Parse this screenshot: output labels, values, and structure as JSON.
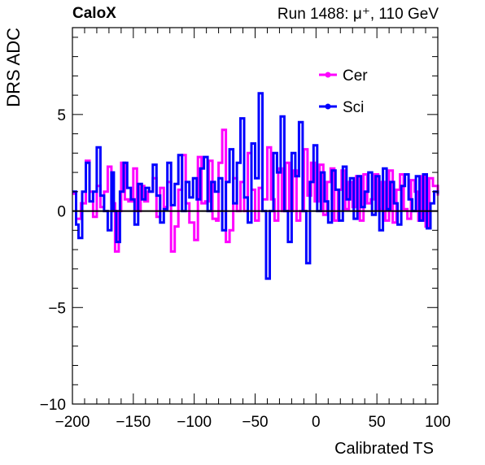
{
  "header": {
    "experiment": "CaloX",
    "run_label": "Run 1488:   μ⁺, 110 GeV"
  },
  "chart_data": {
    "type": "line",
    "title": "",
    "xlabel": "Calibrated TS",
    "ylabel": "DRS ADC",
    "xlim": [
      -200,
      100
    ],
    "ylim": [
      -10,
      9.5
    ],
    "xticks": [
      -200,
      -150,
      -100,
      -50,
      0,
      50,
      100
    ],
    "xtick_labels": [
      "−200",
      "−150",
      "−100",
      "−50",
      "0",
      "50",
      "100"
    ],
    "yticks": [
      -10,
      -5,
      0,
      5
    ],
    "ytick_labels": [
      "−10",
      "−5",
      "0",
      "5"
    ],
    "grid": false,
    "legend": "top-right",
    "baseline": 0,
    "series": [
      {
        "name": "Cer",
        "color": "#ff00ff",
        "points": [
          [
            -200,
            0.9
          ],
          [
            -197,
            -0.4
          ],
          [
            -193,
            0.4
          ],
          [
            -189,
            2.6
          ],
          [
            -186,
            1.0
          ],
          [
            -183,
            -0.3
          ],
          [
            -180,
            1.3
          ],
          [
            -177,
            0.2
          ],
          [
            -174,
            1.0
          ],
          [
            -171,
            2.3
          ],
          [
            -168,
            0.4
          ],
          [
            -165,
            -2.1
          ],
          [
            -162,
            0.0
          ],
          [
            -160,
            2.5
          ],
          [
            -157,
            0.6
          ],
          [
            -154,
            0.5
          ],
          [
            -150,
            2.2
          ],
          [
            -147,
            0.0
          ],
          [
            -144,
            1.3
          ],
          [
            -141,
            0.5
          ],
          [
            -138,
            1.0
          ],
          [
            -134,
            1.7
          ],
          [
            -131,
            -0.3
          ],
          [
            -128,
            1.2
          ],
          [
            -125,
            0.2
          ],
          [
            -122,
            1.5
          ],
          [
            -119,
            -2.1
          ],
          [
            -116,
            -0.8
          ],
          [
            -113,
            1.1
          ],
          [
            -110,
            2.9
          ],
          [
            -107,
            0.4
          ],
          [
            -104,
            -0.6
          ],
          [
            -100,
            -1.5
          ],
          [
            -97,
            2.8
          ],
          [
            -94,
            0.4
          ],
          [
            -91,
            0.5
          ],
          [
            -88,
            2.6
          ],
          [
            -85,
            -0.4
          ],
          [
            -82,
            -0.5
          ],
          [
            -80,
            2.5
          ],
          [
            -77,
            4.2
          ],
          [
            -74,
            -1.6
          ],
          [
            -71,
            -1.0
          ],
          [
            -68,
            1.7
          ],
          [
            -65,
            0.0
          ],
          [
            -62,
            1.5
          ],
          [
            -59,
            0.0
          ],
          [
            -56,
            3.0
          ],
          [
            -53,
            1.1
          ],
          [
            -50,
            -0.5
          ],
          [
            -47,
            1.2
          ],
          [
            -44,
            0.6
          ],
          [
            -40,
            3.3
          ],
          [
            -37,
            0.6
          ],
          [
            -34,
            -0.5
          ],
          [
            -31,
            2.2
          ],
          [
            -28,
            0.0
          ],
          [
            -25,
            2.5
          ],
          [
            -22,
            0.0
          ],
          [
            -19,
            2.1
          ],
          [
            -16,
            -0.5
          ],
          [
            -13,
            0.0
          ],
          [
            -10,
            3.2
          ],
          [
            -7,
            0.8
          ],
          [
            -4,
            2.5
          ],
          [
            -1,
            0.5
          ],
          [
            3,
            2.4
          ],
          [
            6,
            -0.2
          ],
          [
            9,
            1.5
          ],
          [
            12,
            2.2
          ],
          [
            15,
            -0.5
          ],
          [
            18,
            1.1
          ],
          [
            21,
            2.1
          ],
          [
            24,
            0.1
          ],
          [
            27,
            1.5
          ],
          [
            30,
            0.2
          ],
          [
            33,
            1.8
          ],
          [
            36,
            -0.5
          ],
          [
            39,
            1.9
          ],
          [
            42,
            0.4
          ],
          [
            45,
            0.6
          ],
          [
            48,
            1.9
          ],
          [
            51,
            0.1
          ],
          [
            54,
            1.5
          ],
          [
            57,
            -0.5
          ],
          [
            60,
            2.1
          ],
          [
            63,
            -0.6
          ],
          [
            66,
            1.1
          ],
          [
            69,
            1.9
          ],
          [
            72,
            0.1
          ],
          [
            75,
            -0.4
          ],
          [
            78,
            1.6
          ],
          [
            81,
            1.0
          ],
          [
            84,
            -0.5
          ],
          [
            87,
            1.8
          ],
          [
            90,
            -0.8
          ],
          [
            93,
            1.7
          ],
          [
            96,
            1.3
          ],
          [
            100,
            0.8
          ]
        ]
      },
      {
        "name": "Sci",
        "color": "#0000ff",
        "points": [
          [
            -200,
            1.0
          ],
          [
            -197,
            -0.7
          ],
          [
            -195,
            -1.4
          ],
          [
            -192,
            1.0
          ],
          [
            -189,
            2.5
          ],
          [
            -186,
            0.5
          ],
          [
            -183,
            1.0
          ],
          [
            -180,
            3.3
          ],
          [
            -177,
            0.8
          ],
          [
            -174,
            0.0
          ],
          [
            -171,
            -1.0
          ],
          [
            -168,
            2.0
          ],
          [
            -166,
            0.0
          ],
          [
            -164,
            -1.6
          ],
          [
            -161,
            1.0
          ],
          [
            -158,
            2.5
          ],
          [
            -155,
            1.2
          ],
          [
            -152,
            0.6
          ],
          [
            -149,
            -0.7
          ],
          [
            -146,
            1.4
          ],
          [
            -143,
            0.6
          ],
          [
            -140,
            1.2
          ],
          [
            -137,
            1.0
          ],
          [
            -134,
            2.4
          ],
          [
            -131,
            0.8
          ],
          [
            -128,
            -0.6
          ],
          [
            -125,
            0.1
          ],
          [
            -122,
            2.5
          ],
          [
            -119,
            0.3
          ],
          [
            -116,
            1.4
          ],
          [
            -113,
            2.9
          ],
          [
            -110,
            0.0
          ],
          [
            -107,
            1.5
          ],
          [
            -104,
            0.7
          ],
          [
            -101,
            1.7
          ],
          [
            -98,
            0.6
          ],
          [
            -95,
            2.2
          ],
          [
            -92,
            2.8
          ],
          [
            -89,
            0.0
          ],
          [
            -86,
            1.5
          ],
          [
            -83,
            1.0
          ],
          [
            -80,
            1.7
          ],
          [
            -77,
            -1.0
          ],
          [
            -74,
            1.5
          ],
          [
            -71,
            3.2
          ],
          [
            -68,
            0.4
          ],
          [
            -65,
            2.5
          ],
          [
            -62,
            4.8
          ],
          [
            -59,
            0.7
          ],
          [
            -56,
            -0.6
          ],
          [
            -53,
            3.5
          ],
          [
            -50,
            1.7
          ],
          [
            -47,
            6.1
          ],
          [
            -44,
            0.0
          ],
          [
            -41,
            -3.5
          ],
          [
            -38,
            0.0
          ],
          [
            -35,
            3.0
          ],
          [
            -32,
            2.0
          ],
          [
            -29,
            4.9
          ],
          [
            -26,
            0.0
          ],
          [
            -23,
            -1.6
          ],
          [
            -20,
            3.0
          ],
          [
            -17,
            1.8
          ],
          [
            -14,
            4.6
          ],
          [
            -11,
            0.0
          ],
          [
            -8,
            -2.7
          ],
          [
            -5,
            1.5
          ],
          [
            -2,
            3.4
          ],
          [
            1,
            0.0
          ],
          [
            4,
            2.0
          ],
          [
            7,
            0.5
          ],
          [
            10,
            -0.6
          ],
          [
            13,
            2.1
          ],
          [
            16,
            1.1
          ],
          [
            19,
            -0.5
          ],
          [
            22,
            2.3
          ],
          [
            25,
            0.6
          ],
          [
            28,
            1.7
          ],
          [
            31,
            -0.4
          ],
          [
            34,
            1.8
          ],
          [
            37,
            0.2
          ],
          [
            40,
            1.0
          ],
          [
            43,
            2.0
          ],
          [
            46,
            -0.2
          ],
          [
            49,
            1.8
          ],
          [
            52,
            -1.0
          ],
          [
            55,
            2.2
          ],
          [
            58,
            0.1
          ],
          [
            61,
            1.5
          ],
          [
            64,
            0.4
          ],
          [
            67,
            -0.7
          ],
          [
            70,
            1.3
          ],
          [
            73,
            1.9
          ],
          [
            76,
            0.6
          ],
          [
            79,
            0.0
          ],
          [
            82,
            1.8
          ],
          [
            85,
            -0.5
          ],
          [
            88,
            1.9
          ],
          [
            91,
            -0.9
          ],
          [
            94,
            0.4
          ],
          [
            97,
            1.0
          ],
          [
            100,
            0.9
          ]
        ]
      }
    ]
  }
}
